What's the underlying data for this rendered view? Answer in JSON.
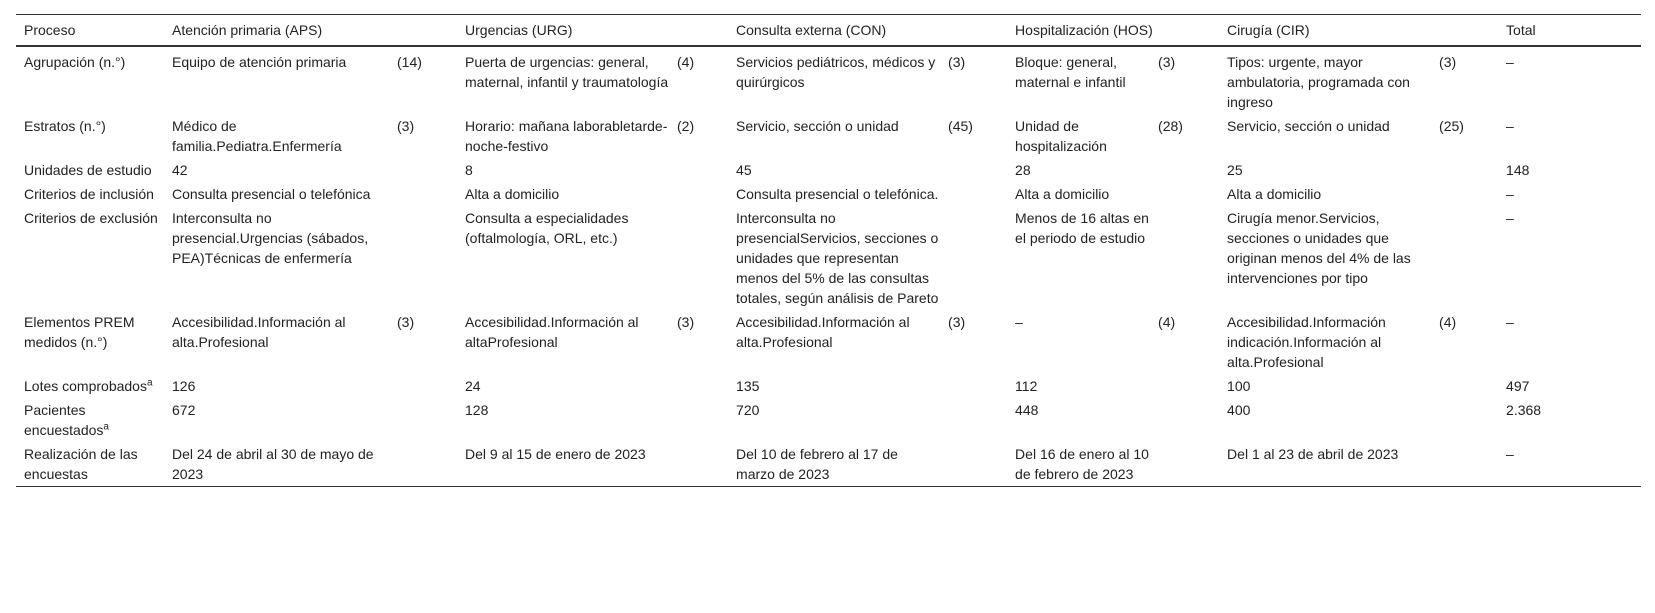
{
  "table": {
    "header": [
      "Proceso",
      "Atención primaria (APS)",
      "Urgencias (URG)",
      "Consulta externa (CON)",
      "Hospitalización (HOS)",
      "Cirugía (CIR)",
      "Total"
    ],
    "rows": [
      {
        "label": "Agrupación (n.°)",
        "cells": [
          {
            "text": "Equipo de atención primaria",
            "count": "(14)"
          },
          {
            "text": "Puerta de urgencias: general, maternal, infantil y traumatología",
            "count": "(4)"
          },
          {
            "text": "Servicios pediátricos, médicos y quirúrgicos",
            "count": "(3)"
          },
          {
            "text": "Bloque: general, maternal e infantil",
            "count": "(3)"
          },
          {
            "text": "Tipos: urgente, mayor ambulatoria, programada con ingreso",
            "count": "(3)"
          }
        ],
        "total": "–"
      },
      {
        "label": "Estratos (n.°)",
        "cells": [
          {
            "text": "Médico de familia.Pediatra.Enfermería",
            "count": "(3)"
          },
          {
            "text": "Horario: mañana laborabletarde-noche-festivo",
            "count": "(2)"
          },
          {
            "text": "Servicio, sección o unidad",
            "count": "(45)"
          },
          {
            "text": "Unidad de hospitalización",
            "count": "(28)"
          },
          {
            "text": "Servicio, sección o unidad",
            "count": "(25)"
          }
        ],
        "total": "–"
      },
      {
        "label": "Unidades de estudio",
        "cells": [
          {
            "text": "42"
          },
          {
            "text": "8"
          },
          {
            "text": "45"
          },
          {
            "text": "28"
          },
          {
            "text": "25"
          }
        ],
        "total": "148"
      },
      {
        "label": "Criterios de inclusión",
        "cells": [
          {
            "text": "Consulta presencial o telefónica"
          },
          {
            "text": "Alta a domicilio"
          },
          {
            "text": "Consulta presencial o telefónica."
          },
          {
            "text": "Alta a domicilio"
          },
          {
            "text": "Alta a domicilio"
          }
        ],
        "total": "–"
      },
      {
        "label": "Criterios de exclusión",
        "cells": [
          {
            "text": "Interconsulta no presencial.Urgencias (sábados, PEA)Técnicas de enfermería"
          },
          {
            "text": "Consulta a especialidades (oftalmología, ORL, etc.)"
          },
          {
            "text": "Interconsulta no presencialServicios, secciones o unidades que representan menos del 5% de las consultas totales, según análisis de Pareto"
          },
          {
            "text": "Menos de 16 altas en el periodo de estudio"
          },
          {
            "text": "Cirugía menor.Servicios, secciones o unidades que originan menos del 4% de las intervenciones por tipo"
          }
        ],
        "total": "–"
      },
      {
        "label": "Elementos PREM medidos (n.°)",
        "cells": [
          {
            "text": "Accesibilidad.Información al alta.Profesional",
            "count": "(3)"
          },
          {
            "text": "Accesibilidad.Información al altaProfesional",
            "count": "(3)"
          },
          {
            "text": "Accesibilidad.Información al alta.Profesional",
            "count": "(3)"
          },
          {
            "text": "–",
            "count": "(4)"
          },
          {
            "text": "Accesibilidad.Información indicación.Información al alta.Profesional",
            "count": "(4)"
          }
        ],
        "total": "–"
      },
      {
        "label": "Lotes comprobados",
        "note": "a",
        "cells": [
          {
            "text": "126"
          },
          {
            "text": "24"
          },
          {
            "text": "135"
          },
          {
            "text": "112"
          },
          {
            "text": "100"
          }
        ],
        "total": "497"
      },
      {
        "label": "Pacientes encuestados",
        "note": "a",
        "cells": [
          {
            "text": "672"
          },
          {
            "text": "128"
          },
          {
            "text": "720"
          },
          {
            "text": "448"
          },
          {
            "text": "400"
          }
        ],
        "total": "2.368"
      },
      {
        "label": "Realización de las encuestas",
        "cells": [
          {
            "text": "Del 24 de abril al 30 de mayo de 2023"
          },
          {
            "text": "Del 9 al 15 de enero de 2023"
          },
          {
            "text": "Del 10 de febrero al 17 de marzo de 2023"
          },
          {
            "text": "Del 16 de enero al 10 de febrero de 2023"
          },
          {
            "text": "Del 1 al 23 de abril de 2023"
          }
        ],
        "total": "–"
      }
    ]
  }
}
